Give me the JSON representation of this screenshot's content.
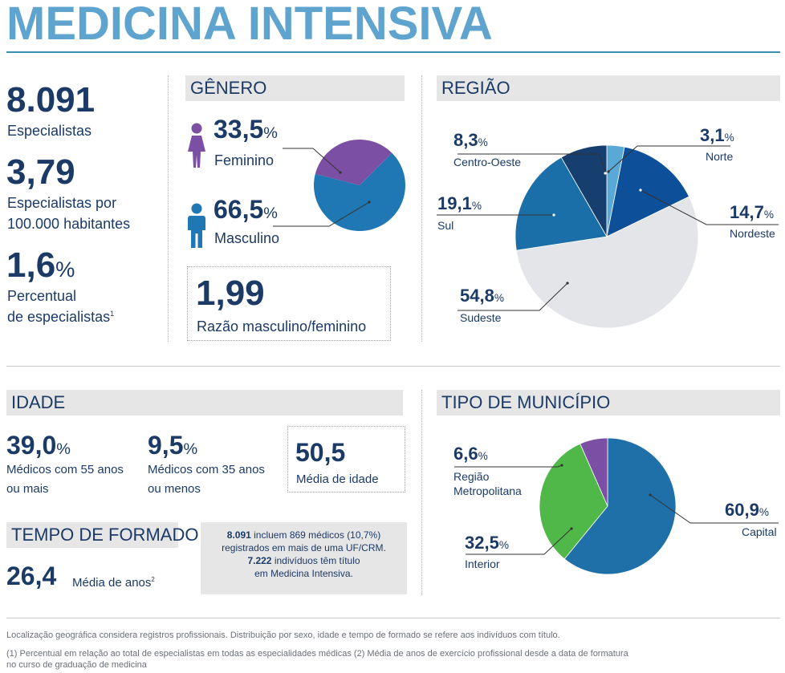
{
  "title": "MEDICINA INTENSIVA",
  "summary": {
    "specialists_value": "8.091",
    "specialists_label": "Especialistas",
    "rate_value": "3,79",
    "rate_label_1": "Especialistas por",
    "rate_label_2": "100.000 habitantes",
    "percent_value": "1,6",
    "percent_unit": "%",
    "percent_label_1": "Percentual",
    "percent_label_2": "de especialistas",
    "percent_note_mark": "1"
  },
  "genero": {
    "heading": "GÊNERO",
    "female_value": "33,5",
    "female_unit": "%",
    "female_label": "Feminino",
    "male_value": "66,5",
    "male_unit": "%",
    "male_label": "Masculino",
    "ratio_value": "1,99",
    "ratio_label": "Razão masculino/feminino",
    "female_icon": "female-person-icon",
    "male_icon": "male-person-icon",
    "female_color": "#7b4fa3",
    "male_color": "#1f77b4"
  },
  "regiao": {
    "heading": "REGIÃO",
    "items": [
      {
        "value": "3,1",
        "unit": "%",
        "label": "Norte",
        "share": 3.1,
        "color": "#5aa8d6"
      },
      {
        "value": "14,7",
        "unit": "%",
        "label": "Nordeste",
        "share": 14.7,
        "color": "#0e4f9a"
      },
      {
        "value": "54,8",
        "unit": "%",
        "label": "Sudeste",
        "share": 54.8,
        "color": "#e4e5e8"
      },
      {
        "value": "19,1",
        "unit": "%",
        "label": "Sul",
        "share": 19.1,
        "color": "#1b6fa8"
      },
      {
        "value": "8,3",
        "unit": "%",
        "label": "Centro-Oeste",
        "share": 8.3,
        "color": "#163e6e"
      }
    ]
  },
  "idade": {
    "heading": "IDADE",
    "over55_value": "39,0",
    "over55_unit": "%",
    "over55_label_1": "Médicos com 55 anos",
    "over55_label_2": "ou mais",
    "under35_value": "9,5",
    "under35_unit": "%",
    "under35_label_1": "Médicos com 35 anos",
    "under35_label_2": "ou menos",
    "mean_value": "50,5",
    "mean_label": "Média de idade"
  },
  "formado": {
    "heading": "TEMPO DE FORMADO",
    "value": "26,4",
    "label": "Média de anos",
    "note_mark": "2"
  },
  "note": {
    "n1": "8.091",
    "t1": " incluem 869 médicos (10,7%)",
    "t2": "registrados em mais de uma UF/CRM.",
    "n2": "7.222",
    "t3": " indivíduos têm título",
    "t4": "em Medicina Intensiva."
  },
  "municipio": {
    "heading": "TIPO DE MUNICÍPIO",
    "items": [
      {
        "value": "60,9",
        "unit": "%",
        "label": "Capital",
        "share": 60.9,
        "color": "#1f70a8"
      },
      {
        "value": "32,5",
        "unit": "%",
        "label": "Interior",
        "share": 32.5,
        "color": "#4fb848"
      },
      {
        "value": "6,6",
        "unit": "%",
        "label": "Região Metropolitana",
        "label_1": "Região",
        "label_2": "Metropolitana",
        "share": 6.6,
        "color": "#7b4fa3"
      }
    ]
  },
  "footer": {
    "line1": "Localização geográfica considera registros profissionais. Distribuição por sexo, idade e tempo de formado se refere aos indivíduos com título.",
    "line2": "(1) Percentual em relação ao total de especialistas em todas as especialidades médicas  (2) Média de anos de exercício profissional desde a data de formatura",
    "line3": "no curso de graduação de medicina"
  }
}
